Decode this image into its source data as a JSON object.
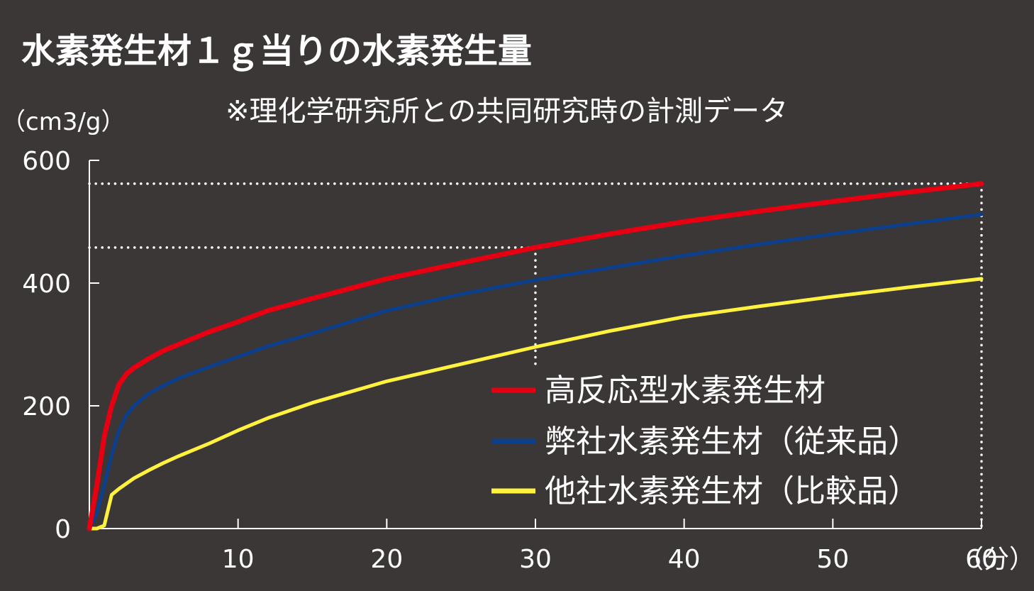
{
  "title": "水素発生材１ｇ当りの水素発生量",
  "note": "※理化学研究所との共同研究時の計測データ",
  "colors": {
    "background": "#3b3737",
    "axis": "#ffffff",
    "series": [
      "#e60012",
      "#0c3f8c",
      "#fff23f"
    ]
  },
  "chart_data": {
    "type": "line",
    "ylabel": "（cm3/g）",
    "xlabel": "（分）",
    "xlim": [
      0,
      60
    ],
    "ylim": [
      0,
      600
    ],
    "x_ticks": [
      "10",
      "20",
      "30",
      "40",
      "50",
      "60"
    ],
    "y_ticks": [
      "600",
      "400",
      "200",
      "0"
    ],
    "grid": false,
    "legend_position": "bottom-right",
    "reference_lines": {
      "x": [
        30,
        60
      ],
      "y": [
        458,
        562
      ]
    },
    "series": [
      {
        "name": "高反応型水素発生材",
        "color": "#e60012",
        "x": [
          0,
          0.5,
          1,
          1.5,
          2,
          2.5,
          3,
          4,
          5,
          6,
          8,
          10,
          12,
          15,
          20,
          25,
          30,
          35,
          40,
          45,
          50,
          55,
          60
        ],
        "y": [
          0,
          70,
          150,
          200,
          235,
          252,
          262,
          277,
          290,
          300,
          320,
          337,
          355,
          375,
          407,
          433,
          458,
          480,
          500,
          517,
          533,
          548,
          562
        ]
      },
      {
        "name": "弊社水素発生材（従来品）",
        "color": "#0c3f8c",
        "x": [
          0,
          0.5,
          1,
          1.5,
          2,
          2.5,
          3,
          4,
          5,
          6,
          8,
          10,
          12,
          15,
          20,
          25,
          30,
          35,
          40,
          45,
          50,
          55,
          60
        ],
        "y": [
          0,
          25,
          70,
          120,
          160,
          185,
          200,
          220,
          233,
          245,
          263,
          280,
          297,
          318,
          355,
          382,
          405,
          425,
          445,
          463,
          480,
          496,
          512
        ]
      },
      {
        "name": "他社水素発生材（比較品）",
        "color": "#fff23f",
        "x": [
          0,
          0.5,
          1,
          1.5,
          2,
          3,
          4,
          5,
          6,
          8,
          10,
          12,
          15,
          20,
          25,
          30,
          35,
          40,
          45,
          50,
          55,
          60
        ],
        "y": [
          0,
          0,
          5,
          55,
          65,
          82,
          95,
          107,
          118,
          138,
          160,
          180,
          205,
          240,
          268,
          296,
          322,
          345,
          362,
          378,
          393,
          407
        ]
      }
    ]
  }
}
